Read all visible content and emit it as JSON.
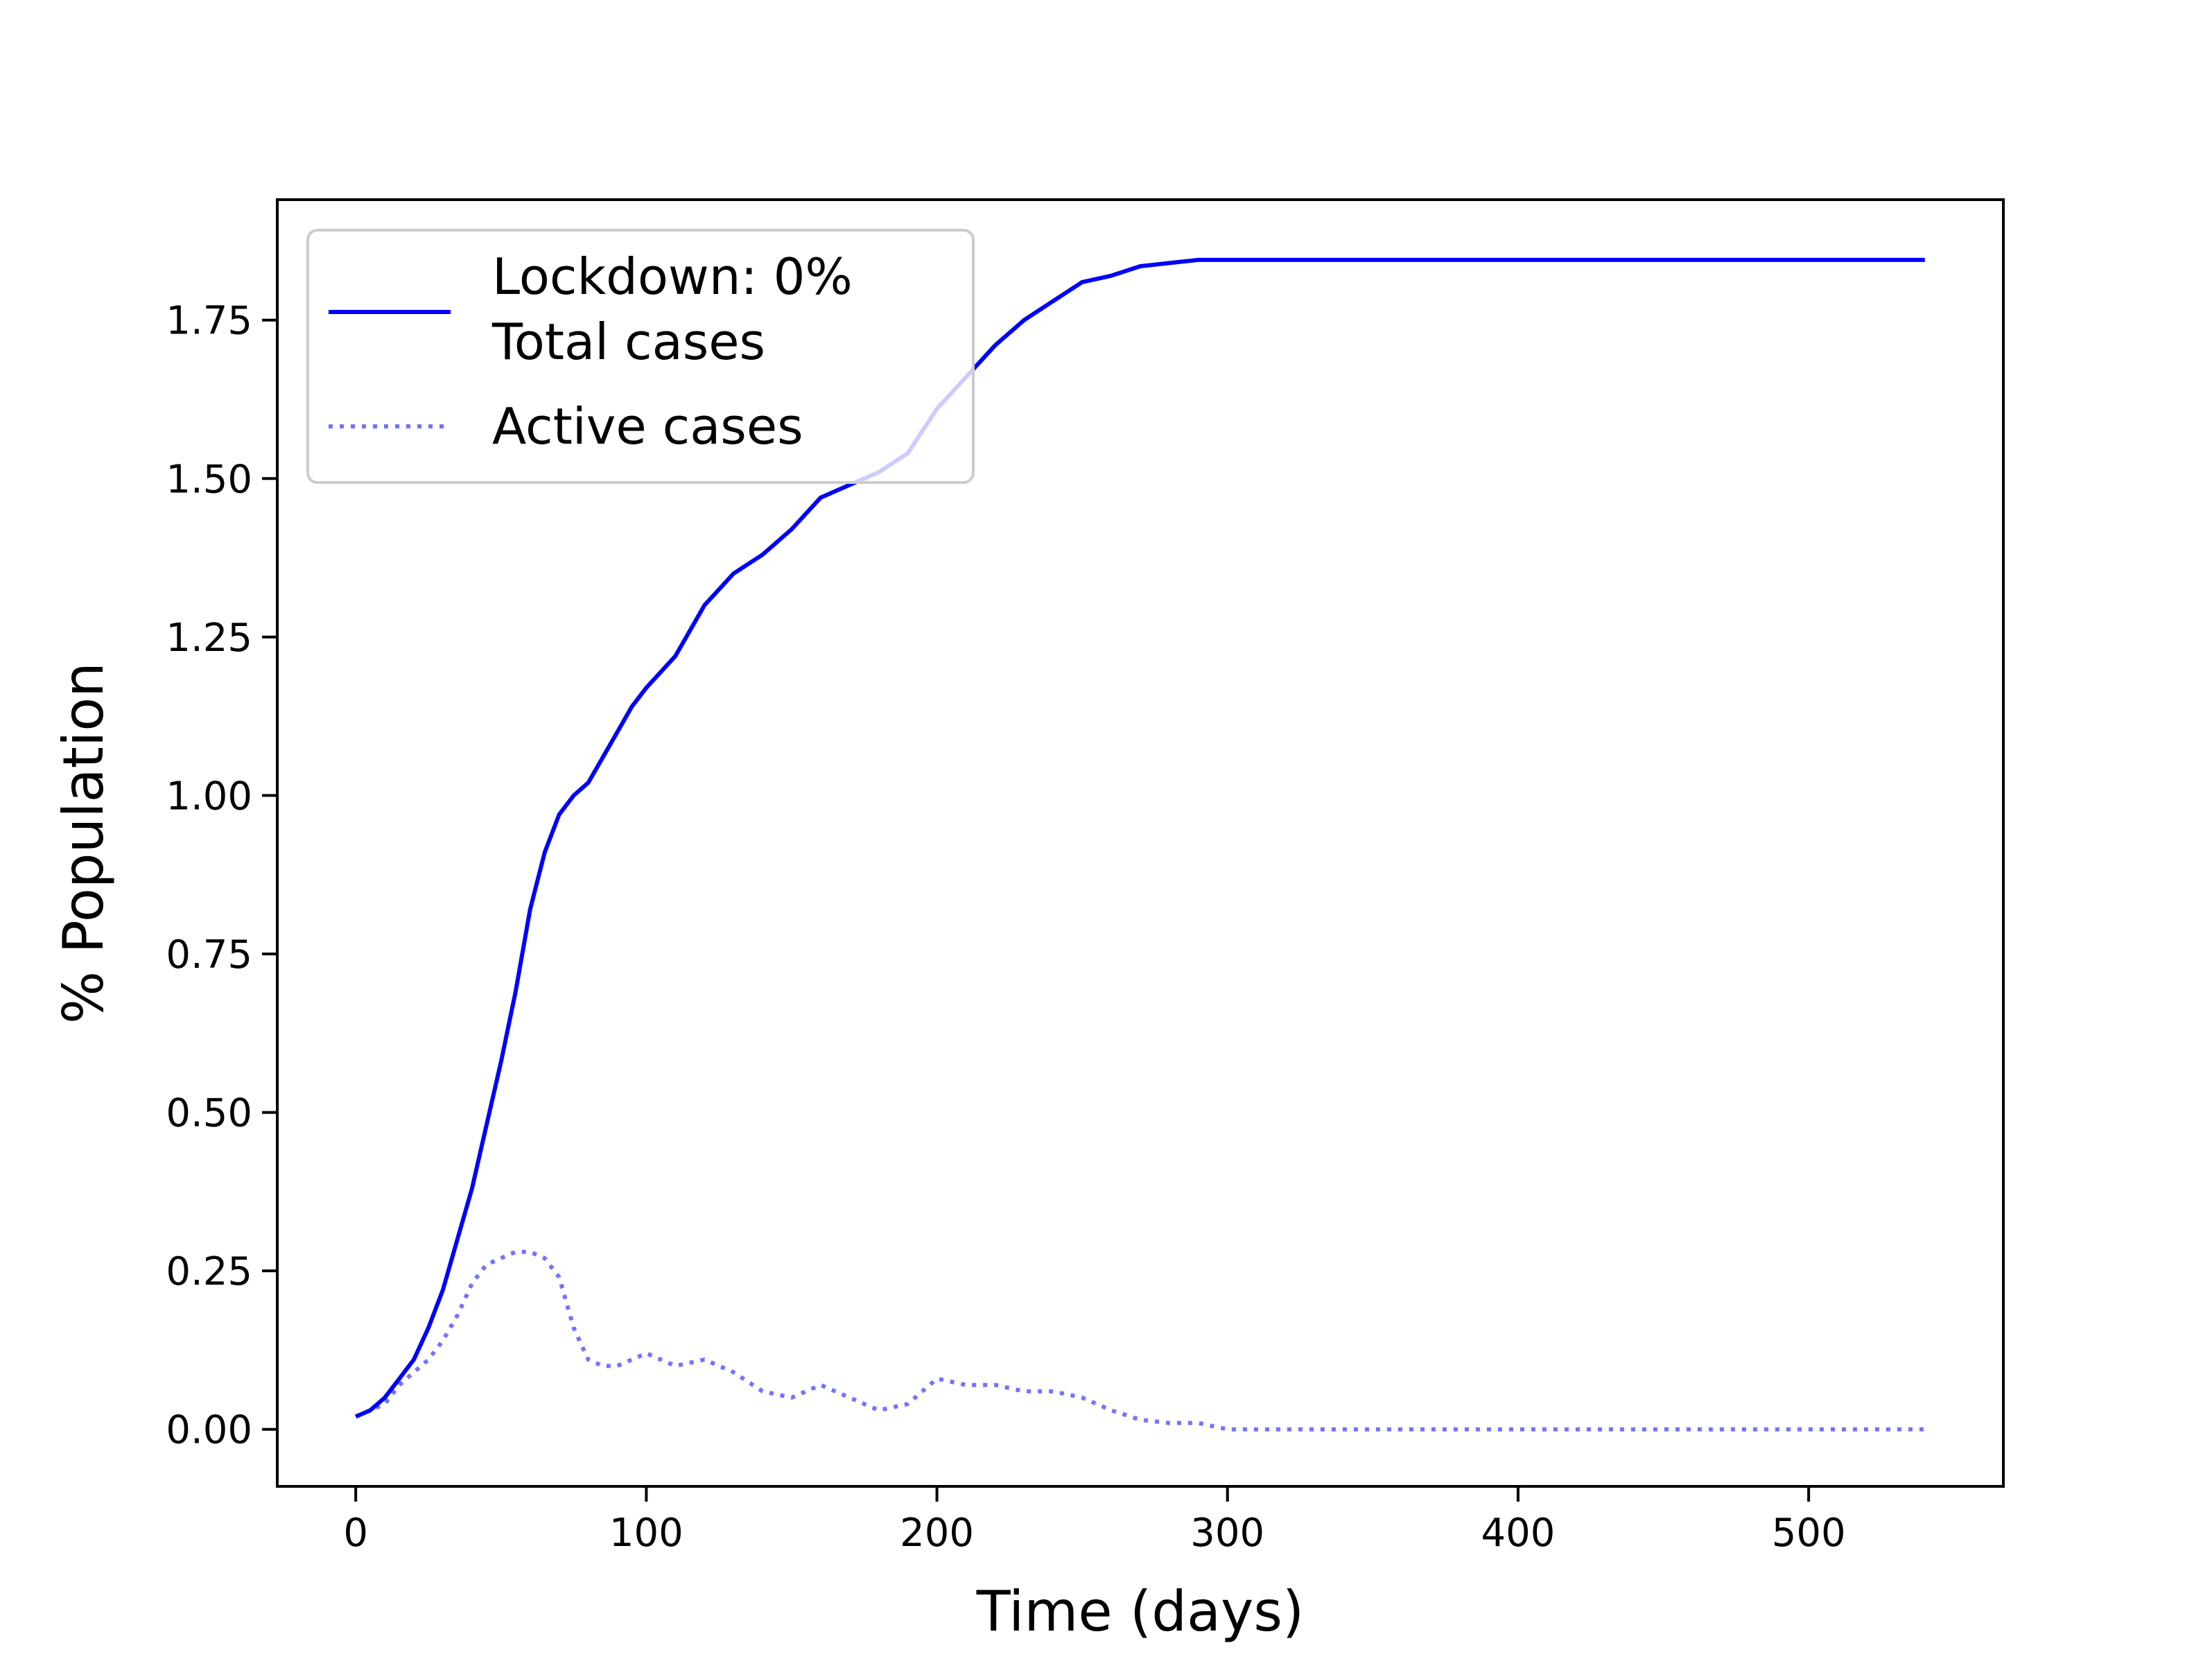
{
  "chart_data": {
    "type": "line",
    "xlabel": "Time (days)",
    "ylabel": "% Population",
    "xlim": [
      -27,
      567
    ],
    "ylim": [
      -0.09,
      1.94
    ],
    "xticks": [
      0,
      100,
      200,
      300,
      400,
      500
    ],
    "yticks": [
      0.0,
      0.25,
      0.5,
      0.75,
      1.0,
      1.25,
      1.5,
      1.75
    ],
    "xtick_labels": [
      "0",
      "100",
      "200",
      "300",
      "400",
      "500"
    ],
    "ytick_labels": [
      "0.00",
      "0.25",
      "0.50",
      "0.75",
      "1.00",
      "1.25",
      "1.50",
      "1.75"
    ],
    "grid": false,
    "legend": {
      "position": "upper-left",
      "entries": [
        {
          "line1": "Lockdown:   0%",
          "line2": "Total cases"
        },
        {
          "line1": "Active cases"
        }
      ]
    },
    "series": [
      {
        "name": "Lockdown:   0%\nTotal cases",
        "color": "#0000ff",
        "style": "solid",
        "x": [
          0,
          5,
          10,
          15,
          20,
          25,
          30,
          35,
          40,
          45,
          50,
          55,
          60,
          65,
          70,
          75,
          80,
          85,
          90,
          95,
          100,
          110,
          120,
          130,
          140,
          150,
          160,
          170,
          180,
          190,
          200,
          210,
          220,
          230,
          240,
          250,
          260,
          270,
          280,
          290,
          300,
          350,
          400,
          450,
          500,
          540
        ],
        "y": [
          0.02,
          0.03,
          0.05,
          0.08,
          0.11,
          0.16,
          0.22,
          0.3,
          0.38,
          0.48,
          0.58,
          0.69,
          0.82,
          0.91,
          0.97,
          1.0,
          1.02,
          1.06,
          1.1,
          1.14,
          1.17,
          1.22,
          1.3,
          1.35,
          1.38,
          1.42,
          1.47,
          1.49,
          1.51,
          1.54,
          1.61,
          1.66,
          1.71,
          1.75,
          1.78,
          1.81,
          1.82,
          1.835,
          1.84,
          1.845,
          1.845,
          1.845,
          1.845,
          1.845,
          1.845,
          1.845
        ]
      },
      {
        "name": "Active cases",
        "color": "#0000ff",
        "opacity": 0.55,
        "style": "dotted",
        "x": [
          0,
          5,
          10,
          15,
          20,
          25,
          30,
          35,
          40,
          45,
          50,
          55,
          60,
          65,
          70,
          75,
          80,
          85,
          90,
          95,
          100,
          110,
          120,
          130,
          140,
          150,
          160,
          170,
          180,
          190,
          200,
          210,
          220,
          230,
          240,
          250,
          260,
          270,
          280,
          290,
          300,
          350,
          400,
          450,
          500,
          540
        ],
        "y": [
          0.02,
          0.03,
          0.04,
          0.07,
          0.09,
          0.11,
          0.14,
          0.18,
          0.23,
          0.26,
          0.27,
          0.28,
          0.28,
          0.27,
          0.24,
          0.16,
          0.11,
          0.1,
          0.1,
          0.11,
          0.12,
          0.1,
          0.11,
          0.09,
          0.06,
          0.05,
          0.07,
          0.05,
          0.03,
          0.04,
          0.08,
          0.07,
          0.07,
          0.06,
          0.06,
          0.05,
          0.03,
          0.015,
          0.01,
          0.01,
          0.0,
          0.0,
          0.0,
          0.0,
          0.0,
          0.0
        ]
      }
    ]
  }
}
